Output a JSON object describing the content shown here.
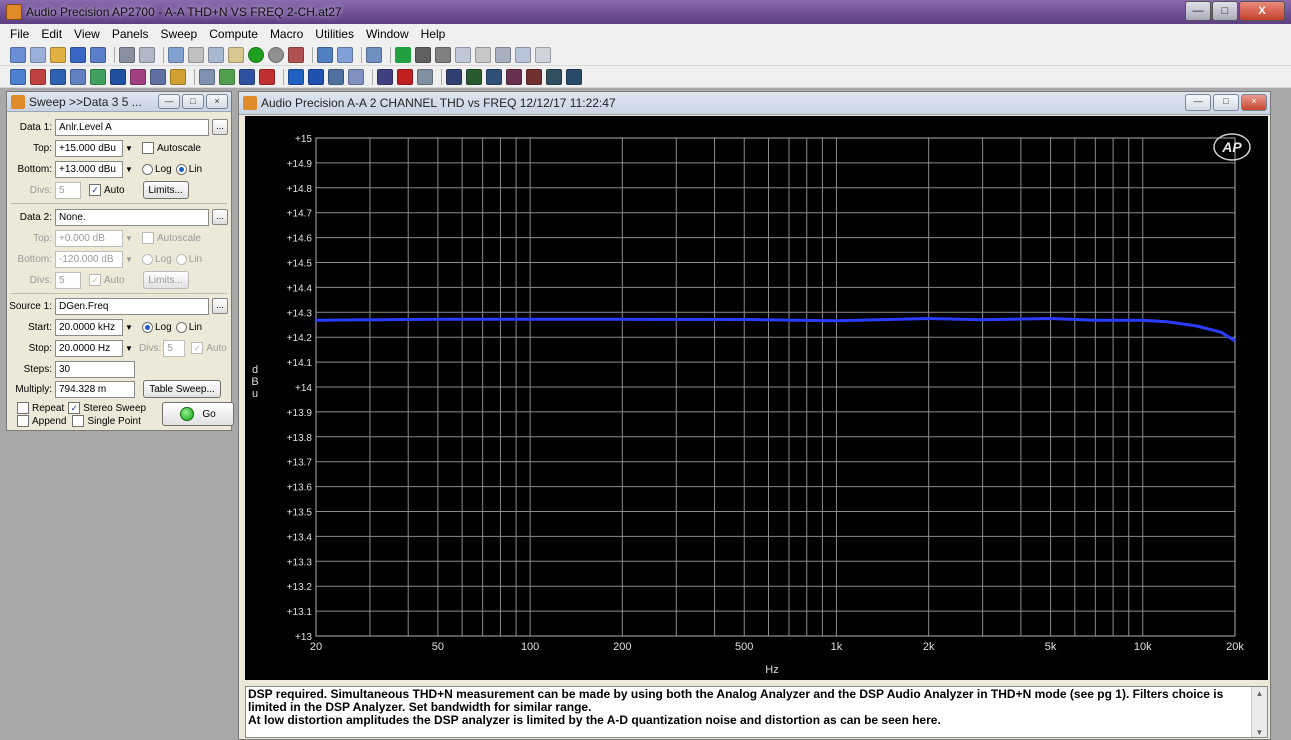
{
  "window": {
    "title": "Audio Precision AP2700 - A-A THD+N VS FREQ 2-CH.at27"
  },
  "menu": [
    "File",
    "Edit",
    "View",
    "Panels",
    "Sweep",
    "Compute",
    "Macro",
    "Utilities",
    "Window",
    "Help"
  ],
  "sweep_panel": {
    "title": "Sweep >>Data 3 5 ...",
    "data1": {
      "label": "Data 1:",
      "value": "Anlr.Level A",
      "top_label": "Top:",
      "top": "+15.000 dBu",
      "bottom_label": "Bottom:",
      "bottom": "+13.000 dBu",
      "autoscale": "Autoscale",
      "log": "Log",
      "lin": "Lin",
      "divs_label": "Divs:",
      "divs": "5",
      "auto": "Auto",
      "limits": "Limits..."
    },
    "data2": {
      "label": "Data 2:",
      "value": "None.",
      "top_label": "Top:",
      "top": "+0.000  dB",
      "bottom_label": "Bottom:",
      "bottom": "-120.000 dB",
      "autoscale": "Autoscale",
      "log": "Log",
      "lin": "Lin",
      "divs_label": "Divs:",
      "divs": "5",
      "auto": "Auto",
      "limits": "Limits..."
    },
    "source1": {
      "label": "Source 1:",
      "value": "DGen.Freq",
      "start_label": "Start:",
      "start": "20.0000 kHz",
      "stop_label": "Stop:",
      "stop": "20.0000  Hz",
      "log": "Log",
      "lin": "Lin",
      "divs_label": "Divs:",
      "divs": "5",
      "auto": "Auto",
      "steps_label": "Steps:",
      "steps": "30",
      "multiply_label": "Multiply:",
      "multiply": "794.328 m",
      "table_sweep": "Table Sweep..."
    },
    "repeat": "Repeat",
    "stereo_sweep": "Stereo Sweep",
    "append": "Append",
    "single_point": "Single Point",
    "go": "Go"
  },
  "graph": {
    "title": "Audio Precision   A-A 2 CHANNEL  THD vs FREQ   12/12/17 11:22:47",
    "logo": "AP"
  },
  "chart_data": {
    "type": "line",
    "xlabel": "Hz",
    "ylabel": "d B u",
    "x_scale": "log",
    "xlim": [
      20,
      20000
    ],
    "ylim": [
      13,
      15
    ],
    "grid": true,
    "x_ticks": [
      20,
      50,
      100,
      200,
      500,
      1000,
      2000,
      5000,
      10000,
      20000
    ],
    "x_tick_labels": [
      "20",
      "50",
      "100",
      "200",
      "500",
      "1k",
      "2k",
      "5k",
      "10k",
      "20k"
    ],
    "y_ticks": [
      15,
      14.9,
      14.8,
      14.7,
      14.6,
      14.5,
      14.4,
      14.3,
      14.2,
      14.1,
      14,
      13.9,
      13.8,
      13.7,
      13.6,
      13.5,
      13.4,
      13.3,
      13.2,
      13.1,
      13
    ],
    "y_tick_labels": [
      "+15",
      "+14.9",
      "+14.8",
      "+14.7",
      "+14.6",
      "+14.5",
      "+14.4",
      "+14.3",
      "+14.2",
      "+14.1",
      "+14",
      "+13.9",
      "+13.8",
      "+13.7",
      "+13.6",
      "+13.5",
      "+13.4",
      "+13.3",
      "+13.2",
      "+13.1",
      "+13"
    ],
    "series": [
      {
        "color": "#2a3cff",
        "x": [
          20,
          30,
          50,
          100,
          200,
          500,
          1000,
          2000,
          3000,
          5000,
          7000,
          10000,
          12000,
          15000,
          18000,
          20000
        ],
        "y": [
          14.268,
          14.27,
          14.272,
          14.272,
          14.272,
          14.271,
          14.266,
          14.275,
          14.27,
          14.275,
          14.268,
          14.268,
          14.262,
          14.245,
          14.22,
          14.185
        ]
      }
    ]
  },
  "notes": {
    "line1": "DSP required.  Simultaneous THD+N measurement can be made by using both the Analog Analyzer and the DSP Audio Analyzer in THD+N mode (see pg 1).  Filters choice is limited in the DSP Analyzer.  Set bandwidth for similar range.",
    "line2": "At low distortion amplitudes the DSP analyzer is limited by the A-D quantization noise and distortion as can be seen here."
  }
}
